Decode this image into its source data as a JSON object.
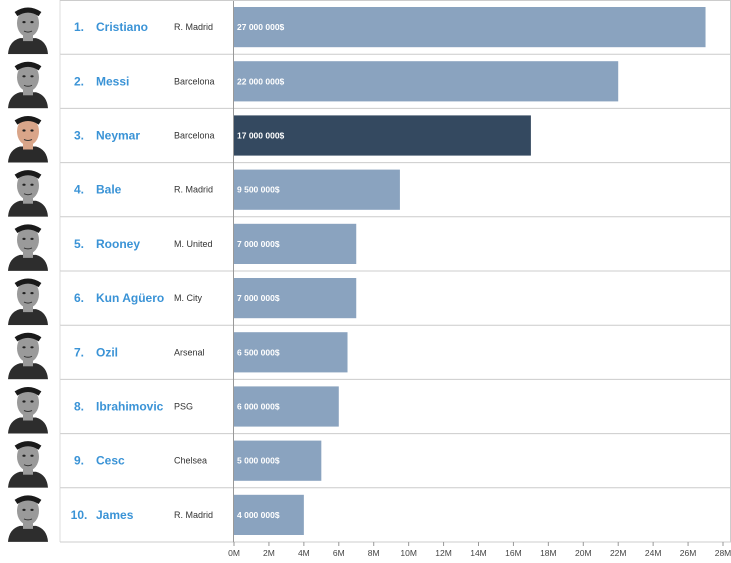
{
  "chart_data": {
    "type": "bar",
    "orientation": "horizontal",
    "title": "",
    "xlabel": "",
    "ylabel": "",
    "xlim": [
      0,
      28000000
    ],
    "ticks": [
      "0M",
      "2M",
      "4M",
      "6M",
      "8M",
      "10M",
      "12M",
      "14M",
      "16M",
      "18M",
      "20M",
      "22M",
      "24M",
      "26M",
      "28M"
    ],
    "grid": false,
    "highlight_color": "#344960",
    "bar_color": "#8aa3bf",
    "rows": [
      {
        "rank": "1.",
        "name": "Cristiano",
        "club": "R. Madrid",
        "value": 27000000,
        "label": "27 000 000$",
        "highlight": false
      },
      {
        "rank": "2.",
        "name": "Messi",
        "club": "Barcelona",
        "value": 22000000,
        "label": "22 000 000$",
        "highlight": false
      },
      {
        "rank": "3.",
        "name": "Neymar",
        "club": "Barcelona",
        "value": 17000000,
        "label": "17 000 000$",
        "highlight": true
      },
      {
        "rank": "4.",
        "name": "Bale",
        "club": "R. Madrid",
        "value": 9500000,
        "label": "9 500 000$",
        "highlight": false
      },
      {
        "rank": "5.",
        "name": "Rooney",
        "club": "M. United",
        "value": 7000000,
        "label": "7 000 000$",
        "highlight": false
      },
      {
        "rank": "6.",
        "name": "Kun Agüero",
        "club": "M. City",
        "value": 7000000,
        "label": "7 000 000$",
        "highlight": false
      },
      {
        "rank": "7.",
        "name": "Ozil",
        "club": "Arsenal",
        "value": 6500000,
        "label": "6 500 000$",
        "highlight": false
      },
      {
        "rank": "8.",
        "name": "Ibrahimovic",
        "club": "PSG",
        "value": 6000000,
        "label": "6 000 000$",
        "highlight": false
      },
      {
        "rank": "9.",
        "name": "Cesc",
        "club": "Chelsea",
        "value": 5000000,
        "label": "5 000 000$",
        "highlight": false
      },
      {
        "rank": "10.",
        "name": "James",
        "club": "R. Madrid",
        "value": 4000000,
        "label": "4 000 000$",
        "highlight": false
      }
    ]
  }
}
